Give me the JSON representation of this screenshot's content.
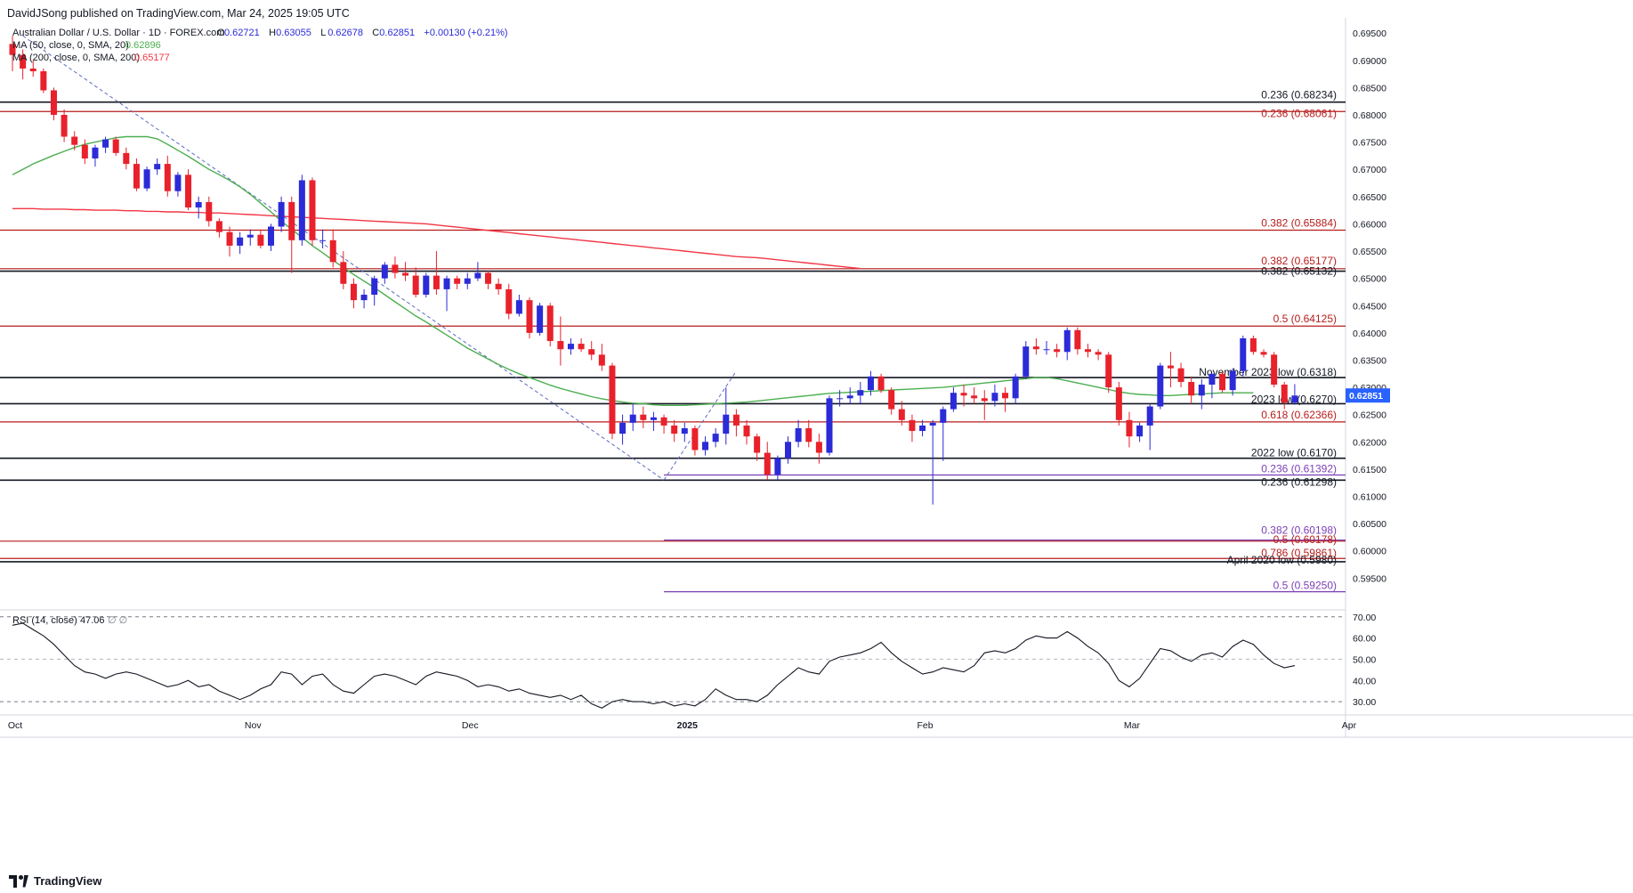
{
  "header": {
    "published": "DavidJSong published on TradingView.com, Mar 24, 2025 19:05 UTC"
  },
  "legend": {
    "symbol_line": "Australian Dollar / U.S. Dollar · 1D · FOREX.com",
    "ohlc": [
      {
        "k": "O",
        "v": "0.62721"
      },
      {
        "k": "H",
        "v": "0.63055"
      },
      {
        "k": "L",
        "v": "0.62678"
      },
      {
        "k": "C",
        "v": "0.62851"
      },
      {
        "k": "",
        "v": "+0.00130 (+0.21%)"
      }
    ],
    "ma50_label": "MA (50, close, 0, SMA, 20)",
    "ma50_value": "0.62896",
    "ma200_label": "MA (200, close, 0, SMA, 200)",
    "ma200_value": "0.65177",
    "rsi_label": "RSI (14, close)",
    "rsi_value": "47.06",
    "rsi_extra": "∅ ∅"
  },
  "colors": {
    "up": "#2b2bd8",
    "down": "#e8212b",
    "ma50": "#4caf50",
    "ma200": "#f23645",
    "fib_red": "#b71c1c",
    "fib_purple": "#7b3fb5",
    "level_black": "#131722",
    "grid": "#f0f3fa",
    "last_price_bg": "#2962ff"
  },
  "footer": {
    "brand": "TradingView"
  },
  "chart_data": {
    "type": "candlestick",
    "title": "Australian Dollar / U.S. Dollar · 1D · FOREX.com",
    "ylim": [
      0.5895,
      0.6965
    ],
    "y_ticks": [
      "0.69500",
      "0.69000",
      "0.68500",
      "0.68000",
      "0.67500",
      "0.67000",
      "0.66500",
      "0.66000",
      "0.65500",
      "0.65000",
      "0.64500",
      "0.64000",
      "0.63500",
      "0.63000",
      "0.62500",
      "0.62000",
      "0.61500",
      "0.61000",
      "0.60500",
      "0.60000",
      "0.59500"
    ],
    "x_ticks": [
      {
        "label": "Oct",
        "i": 0
      },
      {
        "label": "Nov",
        "i": 23
      },
      {
        "label": "Dec",
        "i": 44
      },
      {
        "label": "2025",
        "i": 65
      },
      {
        "label": "Feb",
        "i": 88
      },
      {
        "label": "Mar",
        "i": 108
      },
      {
        "label": "Apr",
        "i": 129
      }
    ],
    "last_price": "0.62851",
    "candles": [
      [
        0.693,
        0.6945,
        0.688,
        0.691
      ],
      [
        0.691,
        0.692,
        0.6865,
        0.6885
      ],
      [
        0.6885,
        0.69,
        0.687,
        0.688
      ],
      [
        0.688,
        0.6885,
        0.684,
        0.6845
      ],
      [
        0.6845,
        0.685,
        0.679,
        0.68
      ],
      [
        0.68,
        0.681,
        0.675,
        0.676
      ],
      [
        0.676,
        0.677,
        0.6735,
        0.6745
      ],
      [
        0.6745,
        0.6755,
        0.671,
        0.672
      ],
      [
        0.672,
        0.6745,
        0.6705,
        0.674
      ],
      [
        0.674,
        0.676,
        0.673,
        0.6755
      ],
      [
        0.6755,
        0.676,
        0.6725,
        0.673
      ],
      [
        0.673,
        0.674,
        0.67,
        0.671
      ],
      [
        0.671,
        0.672,
        0.666,
        0.6665
      ],
      [
        0.6665,
        0.6705,
        0.666,
        0.67
      ],
      [
        0.67,
        0.672,
        0.669,
        0.671
      ],
      [
        0.671,
        0.6725,
        0.665,
        0.666
      ],
      [
        0.666,
        0.6695,
        0.665,
        0.669
      ],
      [
        0.669,
        0.67,
        0.6625,
        0.663
      ],
      [
        0.663,
        0.665,
        0.661,
        0.664
      ],
      [
        0.664,
        0.665,
        0.6595,
        0.6605
      ],
      [
        0.6605,
        0.661,
        0.6575,
        0.6585
      ],
      [
        0.6585,
        0.6595,
        0.654,
        0.656
      ],
      [
        0.656,
        0.6585,
        0.6545,
        0.6575
      ],
      [
        0.6575,
        0.659,
        0.656,
        0.658
      ],
      [
        0.658,
        0.659,
        0.6555,
        0.656
      ],
      [
        0.656,
        0.66,
        0.655,
        0.6595
      ],
      [
        0.6595,
        0.665,
        0.6585,
        0.664
      ],
      [
        0.664,
        0.665,
        0.651,
        0.657
      ],
      [
        0.657,
        0.669,
        0.656,
        0.668
      ],
      [
        0.668,
        0.6685,
        0.656,
        0.657
      ],
      [
        0.657,
        0.659,
        0.6555,
        0.657
      ],
      [
        0.657,
        0.659,
        0.652,
        0.653
      ],
      [
        0.653,
        0.655,
        0.648,
        0.649
      ],
      [
        0.649,
        0.65,
        0.6445,
        0.646
      ],
      [
        0.646,
        0.648,
        0.6445,
        0.647
      ],
      [
        0.647,
        0.6505,
        0.645,
        0.65
      ],
      [
        0.65,
        0.653,
        0.649,
        0.6525
      ],
      [
        0.6525,
        0.654,
        0.65,
        0.651
      ],
      [
        0.651,
        0.653,
        0.6495,
        0.6505
      ],
      [
        0.6505,
        0.652,
        0.6465,
        0.647
      ],
      [
        0.647,
        0.651,
        0.6465,
        0.6505
      ],
      [
        0.6505,
        0.655,
        0.647,
        0.648
      ],
      [
        0.648,
        0.6505,
        0.644,
        0.65
      ],
      [
        0.65,
        0.6505,
        0.648,
        0.649
      ],
      [
        0.649,
        0.651,
        0.648,
        0.65
      ],
      [
        0.65,
        0.653,
        0.6495,
        0.651
      ],
      [
        0.651,
        0.6515,
        0.648,
        0.649
      ],
      [
        0.649,
        0.65,
        0.647,
        0.648
      ],
      [
        0.648,
        0.649,
        0.6425,
        0.6435
      ],
      [
        0.6435,
        0.647,
        0.643,
        0.646
      ],
      [
        0.646,
        0.6465,
        0.639,
        0.64
      ],
      [
        0.64,
        0.6455,
        0.6395,
        0.645
      ],
      [
        0.645,
        0.6455,
        0.6375,
        0.6385
      ],
      [
        0.6385,
        0.643,
        0.634,
        0.637
      ],
      [
        0.637,
        0.639,
        0.636,
        0.638
      ],
      [
        0.638,
        0.639,
        0.6365,
        0.637
      ],
      [
        0.637,
        0.6385,
        0.635,
        0.636
      ],
      [
        0.636,
        0.638,
        0.633,
        0.634
      ],
      [
        0.634,
        0.6345,
        0.6205,
        0.6215
      ],
      [
        0.6215,
        0.625,
        0.6195,
        0.6235
      ],
      [
        0.6235,
        0.627,
        0.622,
        0.625
      ],
      [
        0.625,
        0.6265,
        0.6225,
        0.624
      ],
      [
        0.624,
        0.6255,
        0.622,
        0.6245
      ],
      [
        0.6245,
        0.625,
        0.6215,
        0.623
      ],
      [
        0.623,
        0.624,
        0.62,
        0.6215
      ],
      [
        0.6215,
        0.6235,
        0.62,
        0.6225
      ],
      [
        0.6225,
        0.623,
        0.6175,
        0.6185
      ],
      [
        0.6185,
        0.621,
        0.6175,
        0.62
      ],
      [
        0.62,
        0.6225,
        0.619,
        0.6215
      ],
      [
        0.6215,
        0.63,
        0.6195,
        0.625
      ],
      [
        0.625,
        0.626,
        0.621,
        0.623
      ],
      [
        0.623,
        0.624,
        0.6195,
        0.621
      ],
      [
        0.621,
        0.6215,
        0.6165,
        0.618
      ],
      [
        0.618,
        0.62,
        0.613,
        0.614
      ],
      [
        0.614,
        0.6175,
        0.613,
        0.617
      ],
      [
        0.617,
        0.621,
        0.616,
        0.62
      ],
      [
        0.62,
        0.624,
        0.619,
        0.6225
      ],
      [
        0.6225,
        0.624,
        0.619,
        0.62
      ],
      [
        0.62,
        0.6215,
        0.616,
        0.618
      ],
      [
        0.618,
        0.6285,
        0.6175,
        0.628
      ],
      [
        0.628,
        0.6295,
        0.6265,
        0.628
      ],
      [
        0.628,
        0.63,
        0.627,
        0.6285
      ],
      [
        0.6285,
        0.631,
        0.627,
        0.6295
      ],
      [
        0.6295,
        0.633,
        0.6285,
        0.632
      ],
      [
        0.632,
        0.6325,
        0.629,
        0.6295
      ],
      [
        0.6295,
        0.63,
        0.625,
        0.626
      ],
      [
        0.626,
        0.6275,
        0.623,
        0.624
      ],
      [
        0.624,
        0.625,
        0.62,
        0.622
      ],
      [
        0.622,
        0.624,
        0.621,
        0.623
      ],
      [
        0.623,
        0.624,
        0.6085,
        0.6235
      ],
      [
        0.6235,
        0.6265,
        0.6165,
        0.626
      ],
      [
        0.626,
        0.63,
        0.6255,
        0.629
      ],
      [
        0.629,
        0.6305,
        0.6265,
        0.6285
      ],
      [
        0.6285,
        0.63,
        0.627,
        0.628
      ],
      [
        0.628,
        0.6295,
        0.624,
        0.6275
      ],
      [
        0.6275,
        0.6305,
        0.6265,
        0.629
      ],
      [
        0.629,
        0.63,
        0.6255,
        0.628
      ],
      [
        0.628,
        0.6325,
        0.627,
        0.632
      ],
      [
        0.632,
        0.6385,
        0.6315,
        0.6375
      ],
      [
        0.6375,
        0.639,
        0.636,
        0.637
      ],
      [
        0.637,
        0.6385,
        0.636,
        0.637
      ],
      [
        0.637,
        0.638,
        0.6355,
        0.6365
      ],
      [
        0.6365,
        0.641,
        0.635,
        0.6405
      ],
      [
        0.6405,
        0.641,
        0.636,
        0.637
      ],
      [
        0.637,
        0.638,
        0.6355,
        0.6365
      ],
      [
        0.6365,
        0.637,
        0.635,
        0.636
      ],
      [
        0.636,
        0.6365,
        0.629,
        0.63
      ],
      [
        0.63,
        0.631,
        0.623,
        0.624
      ],
      [
        0.624,
        0.6255,
        0.619,
        0.621
      ],
      [
        0.621,
        0.6235,
        0.62,
        0.623
      ],
      [
        0.623,
        0.627,
        0.6185,
        0.6265
      ],
      [
        0.6265,
        0.6345,
        0.626,
        0.634
      ],
      [
        0.634,
        0.6365,
        0.63,
        0.6335
      ],
      [
        0.6335,
        0.6345,
        0.63,
        0.631
      ],
      [
        0.631,
        0.632,
        0.627,
        0.6285
      ],
      [
        0.6285,
        0.6315,
        0.626,
        0.6305
      ],
      [
        0.6305,
        0.6325,
        0.628,
        0.6325
      ],
      [
        0.6325,
        0.633,
        0.629,
        0.6295
      ],
      [
        0.6295,
        0.6335,
        0.6285,
        0.633
      ],
      [
        0.633,
        0.6395,
        0.632,
        0.639
      ],
      [
        0.639,
        0.6395,
        0.636,
        0.6365
      ],
      [
        0.6365,
        0.637,
        0.6355,
        0.636
      ],
      [
        0.636,
        0.6365,
        0.63,
        0.6305
      ],
      [
        0.6305,
        0.631,
        0.626,
        0.6272
      ],
      [
        0.6272,
        0.6306,
        0.6268,
        0.6285
      ]
    ],
    "ma50": [
      0.669,
      0.67,
      0.671,
      0.6718,
      0.6726,
      0.6733,
      0.674,
      0.6746,
      0.675,
      0.6754,
      0.6758,
      0.676,
      0.676,
      0.676,
      0.6756,
      0.6746,
      0.6735,
      0.6724,
      0.6712,
      0.67,
      0.669,
      0.668,
      0.6668,
      0.6654,
      0.6638,
      0.6622,
      0.6605,
      0.659,
      0.6575,
      0.656,
      0.6547,
      0.6533,
      0.652,
      0.6507,
      0.6495,
      0.6483,
      0.647,
      0.6457,
      0.6444,
      0.6431,
      0.642,
      0.6408,
      0.6396,
      0.6384,
      0.6372,
      0.6362,
      0.6352,
      0.6342,
      0.6333,
      0.6325,
      0.6318,
      0.6311,
      0.6304,
      0.6298,
      0.6293,
      0.6288,
      0.6283,
      0.6279,
      0.6276,
      0.6273,
      0.6271,
      0.627,
      0.6268,
      0.6267,
      0.6267,
      0.6267,
      0.6268,
      0.6269,
      0.627,
      0.6271,
      0.6272,
      0.6273,
      0.6275,
      0.6277,
      0.6279,
      0.6281,
      0.6283,
      0.6285,
      0.6287,
      0.6289,
      0.629,
      0.6291,
      0.6292,
      0.6293,
      0.6294,
      0.6295,
      0.6296,
      0.6297,
      0.6298,
      0.6299,
      0.63,
      0.6302,
      0.6304,
      0.6306,
      0.6308,
      0.631,
      0.6312,
      0.6314,
      0.6316,
      0.6318,
      0.6318,
      0.6316,
      0.6312,
      0.6308,
      0.6304,
      0.63,
      0.6296,
      0.6292,
      0.6289,
      0.6287,
      0.6286,
      0.6285,
      0.6285,
      0.6286,
      0.6287,
      0.6288,
      0.6289,
      0.629,
      0.629,
      0.629,
      0.629
    ],
    "ma200": [
      0.6628,
      0.6628,
      0.6628,
      0.6627,
      0.6627,
      0.6627,
      0.6626,
      0.6626,
      0.6625,
      0.6625,
      0.6625,
      0.6624,
      0.6624,
      0.6623,
      0.6623,
      0.6622,
      0.6622,
      0.6621,
      0.6621,
      0.662,
      0.662,
      0.6619,
      0.6618,
      0.6617,
      0.6616,
      0.6615,
      0.6614,
      0.6613,
      0.6612,
      0.6611,
      0.661,
      0.6609,
      0.6608,
      0.6607,
      0.6606,
      0.6605,
      0.6604,
      0.6603,
      0.6602,
      0.6601,
      0.66,
      0.6598,
      0.6596,
      0.6594,
      0.6592,
      0.659,
      0.6588,
      0.6586,
      0.6584,
      0.6582,
      0.658,
      0.6578,
      0.6576,
      0.6574,
      0.6572,
      0.657,
      0.6568,
      0.6566,
      0.6564,
      0.6562,
      0.656,
      0.6558,
      0.6556,
      0.6554,
      0.6552,
      0.655,
      0.6548,
      0.6546,
      0.6544,
      0.6542,
      0.654,
      0.6539,
      0.6538,
      0.6536,
      0.6534,
      0.6532,
      0.653,
      0.6528,
      0.6526,
      0.6524,
      0.6522,
      0.652,
      0.6518
    ],
    "levels": [
      {
        "y": 0.68234,
        "kind": "black",
        "label": "0.236 (0.68234)"
      },
      {
        "y": 0.68061,
        "kind": "red",
        "label": "0.236 (0.68061)"
      },
      {
        "y": 0.65884,
        "kind": "red",
        "label": "0.382 (0.65884)"
      },
      {
        "y": 0.65177,
        "kind": "red",
        "label": "0.382 (0.65177)"
      },
      {
        "y": 0.65132,
        "kind": "black",
        "label": "0.382 (0.65132)"
      },
      {
        "y": 0.64125,
        "kind": "red",
        "label": "0.5 (0.64125)"
      },
      {
        "y": 0.6318,
        "kind": "black",
        "label": "November 2023 low (0.6318)"
      },
      {
        "y": 0.627,
        "kind": "black",
        "label": "2023 low (0.6270)"
      },
      {
        "y": 0.62366,
        "kind": "red",
        "label": "0.618 (0.62366)"
      },
      {
        "y": 0.617,
        "kind": "black",
        "label": "2022 low (0.6170)"
      },
      {
        "y": 0.61392,
        "kind": "purple",
        "label": "0.236 (0.61392)"
      },
      {
        "y": 0.61298,
        "kind": "black",
        "label": "0.236 (0.61298)"
      },
      {
        "y": 0.60198,
        "kind": "purple",
        "label": "0.382 (0.60198)"
      },
      {
        "y": 0.60178,
        "kind": "red",
        "label": "0.5 (0.60178)"
      },
      {
        "y": 0.59861,
        "kind": "red",
        "label": "0.786 (0.59861)"
      },
      {
        "y": 0.598,
        "kind": "black",
        "label": "April 2020 low (0.5980)"
      },
      {
        "y": 0.5925,
        "kind": "purple",
        "label": "0.5 (0.59250)"
      }
    ],
    "rsi": {
      "ylim": [
        25,
        72
      ],
      "y_ticks": [
        "70.00",
        "60.00",
        "50.00",
        "40.00",
        "30.00"
      ],
      "values": [
        66,
        67,
        64,
        61,
        57,
        52,
        47,
        44,
        43,
        41,
        43,
        44,
        43,
        41,
        39,
        37,
        38,
        40,
        37,
        38,
        35,
        33,
        31,
        33,
        36,
        38,
        44,
        43,
        38,
        42,
        43,
        38,
        35,
        34,
        38,
        42,
        43,
        42,
        40,
        38,
        42,
        44,
        43,
        42,
        40,
        37,
        38,
        37,
        35,
        36,
        34,
        33,
        32,
        33,
        31,
        33,
        29,
        27,
        30,
        31,
        30,
        30,
        29,
        30,
        28,
        29,
        28,
        31,
        36,
        33,
        31,
        31,
        30,
        33,
        38,
        42,
        46,
        44,
        43,
        49,
        51,
        52,
        53,
        55,
        58,
        53,
        49,
        46,
        43,
        44,
        46,
        45,
        44,
        47,
        53,
        54,
        53,
        55,
        59,
        61,
        60,
        60,
        63,
        60,
        56,
        53,
        48,
        40,
        37,
        41,
        48,
        55,
        54,
        51,
        49,
        52,
        53,
        51,
        56,
        59,
        57,
        52,
        48,
        46,
        47
      ]
    }
  }
}
